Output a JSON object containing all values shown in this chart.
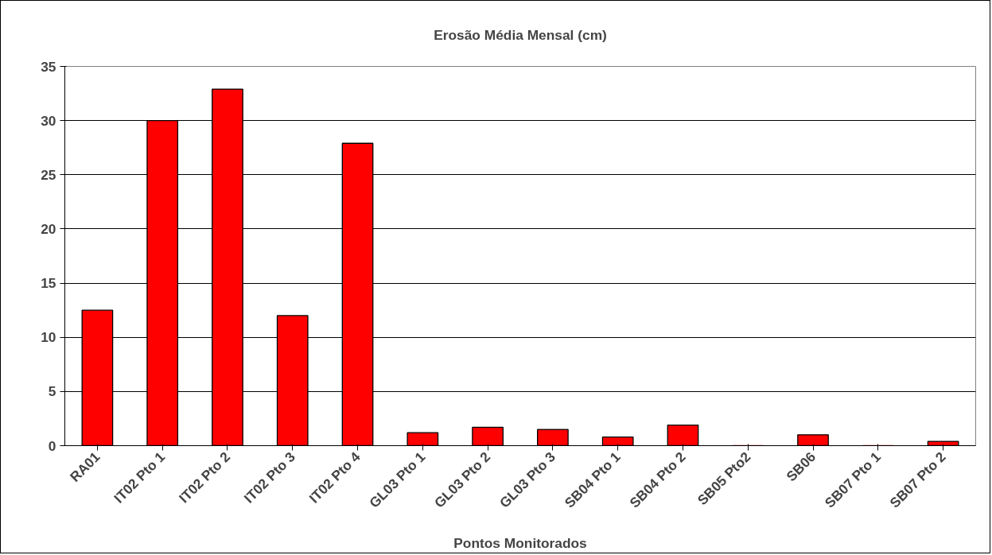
{
  "chart_data": {
    "type": "bar",
    "title": "Erosão Média Mensal (cm)",
    "xlabel": "Pontos Monitorados",
    "categories": [
      "RA01",
      "IT02 Pto 1",
      "IT02 Pto 2",
      "IT02 Pto 3",
      "IT02 Pto 4",
      "GL03 Pto 1",
      "GL03 Pto 2",
      "GL03 Pto 3",
      "SB04 Pto 1",
      "SB04 Pto 2",
      "SB05 Pto2",
      "SB06",
      "SB07 Pto 1",
      "SB07 Pto 2"
    ],
    "values": [
      12.5,
      30,
      32.9,
      12.0,
      27.9,
      1.2,
      1.7,
      1.5,
      0.8,
      1.9,
      0,
      1.0,
      0,
      0.4
    ],
    "color": "#ff0000",
    "ylim": [
      0,
      35
    ],
    "yticks": [
      0,
      5,
      10,
      15,
      20,
      25,
      30,
      35
    ],
    "grid": "y"
  }
}
